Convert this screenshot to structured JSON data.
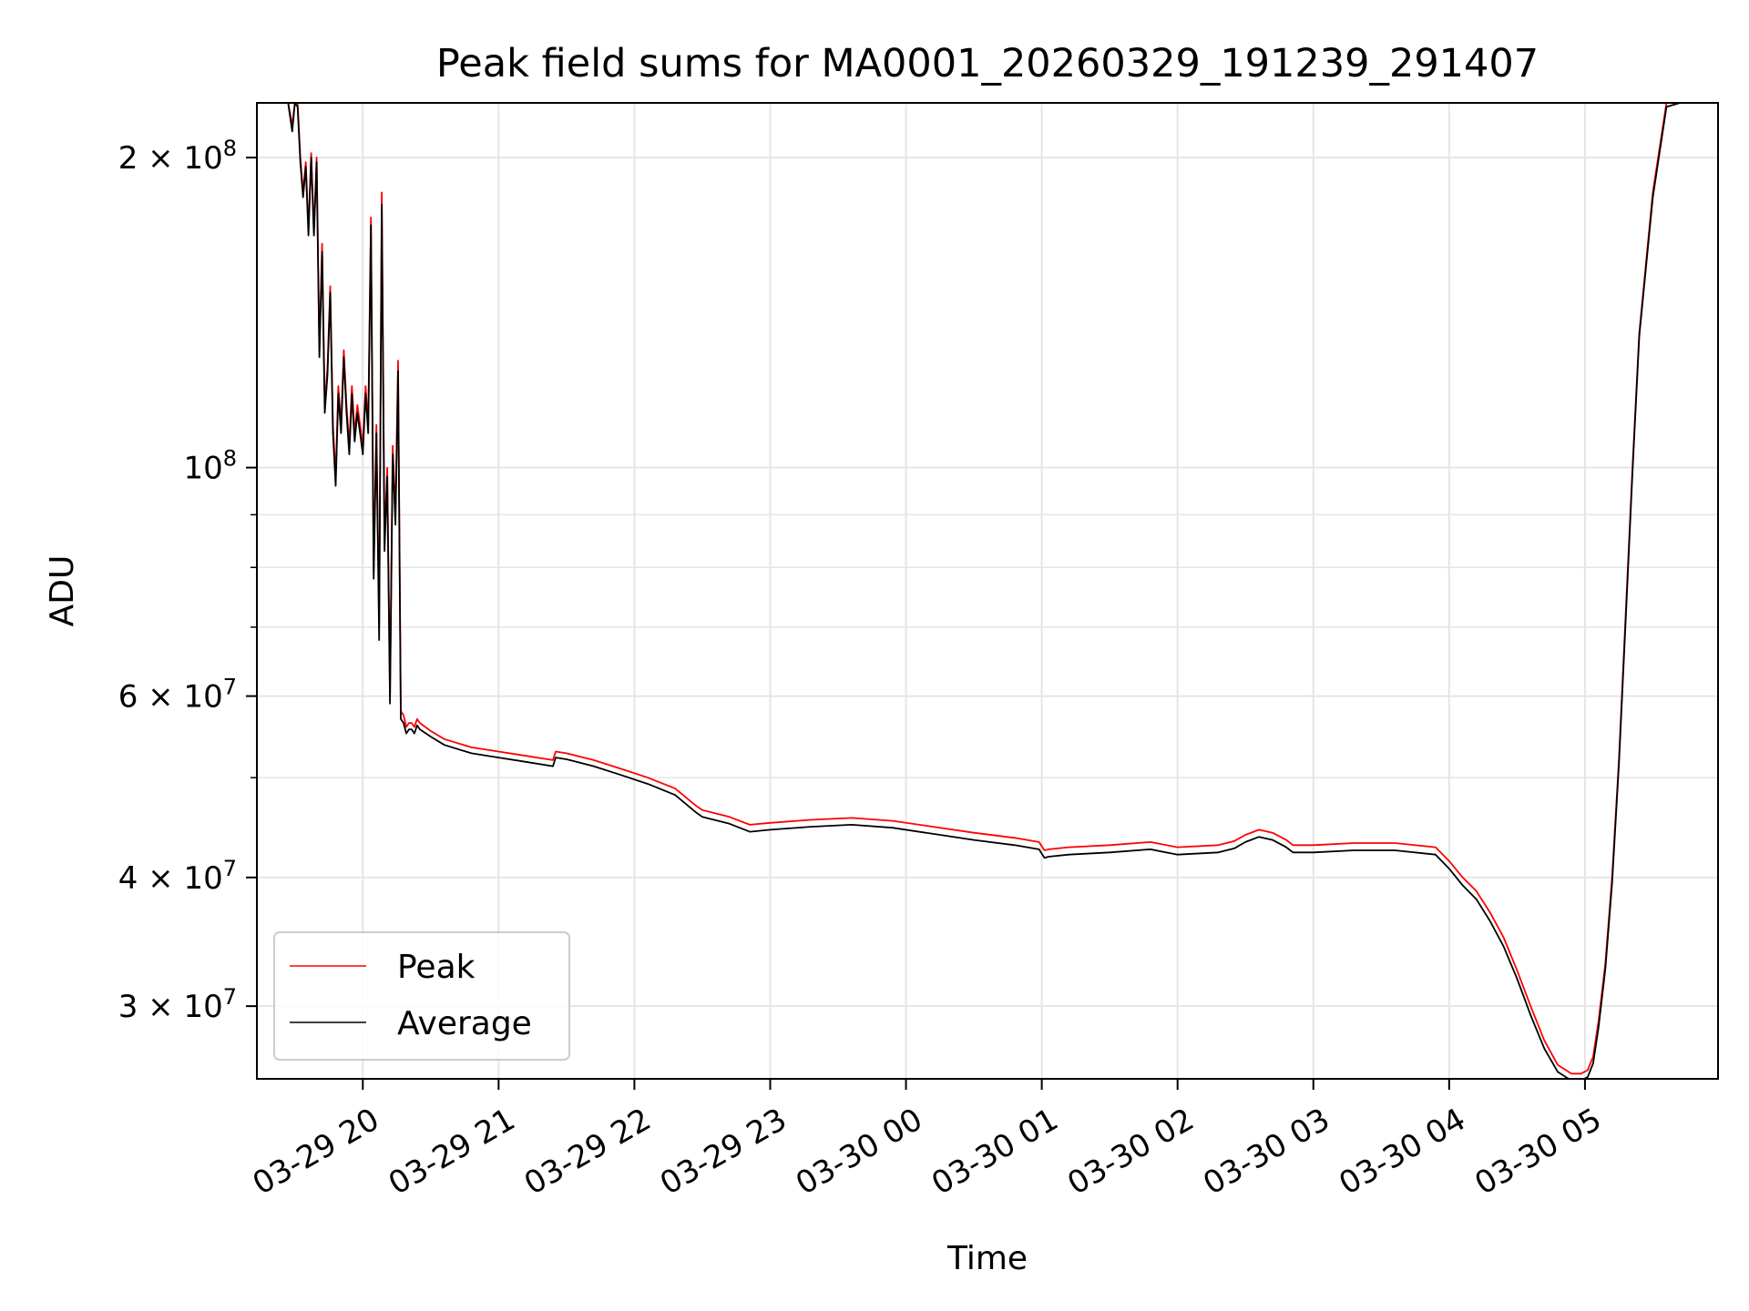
{
  "chart_data": {
    "type": "line",
    "title": "Peak field sums for MA0001_20260329_191239_291407",
    "xlabel": "Time",
    "ylabel": "ADU",
    "yscale": "log",
    "ylim": [
      25500000,
      226000000
    ],
    "xlim": [
      -0.78,
      9.98
    ],
    "x_unit": "hours since 03-29 20:00",
    "x_ticks": [
      {
        "value": 0,
        "label": "03-29 20"
      },
      {
        "value": 1,
        "label": "03-29 21"
      },
      {
        "value": 2,
        "label": "03-29 22"
      },
      {
        "value": 3,
        "label": "03-29 23"
      },
      {
        "value": 4,
        "label": "03-30 00"
      },
      {
        "value": 5,
        "label": "03-30 01"
      },
      {
        "value": 6,
        "label": "03-30 02"
      },
      {
        "value": 7,
        "label": "03-30 03"
      },
      {
        "value": 8,
        "label": "03-30 04"
      },
      {
        "value": 9,
        "label": "03-30 05"
      }
    ],
    "y_ticks": [
      {
        "value": 200000000,
        "mantissa": "2",
        "exp": "8"
      },
      {
        "value": 100000000,
        "mantissa": "",
        "exp": "8"
      },
      {
        "value": 60000000,
        "mantissa": "6",
        "exp": "7"
      },
      {
        "value": 40000000,
        "mantissa": "4",
        "exp": "7"
      },
      {
        "value": 30000000,
        "mantissa": "3",
        "exp": "7"
      }
    ],
    "y_minor_ticks": [
      90000000,
      80000000,
      70000000,
      50000000
    ],
    "grid": true,
    "legend_position": "lower-left",
    "series": [
      {
        "name": "Peak",
        "color": "#ff0000",
        "x": [
          -0.78,
          -0.55,
          -0.52,
          -0.5,
          -0.48,
          -0.46,
          -0.44,
          -0.42,
          -0.4,
          -0.38,
          -0.36,
          -0.34,
          -0.32,
          -0.3,
          -0.28,
          -0.26,
          -0.24,
          -0.22,
          -0.2,
          -0.18,
          -0.16,
          -0.14,
          -0.12,
          -0.1,
          -0.08,
          -0.06,
          -0.04,
          -0.02,
          0,
          0.02,
          0.04,
          0.06,
          0.08,
          0.1,
          0.12,
          0.14,
          0.16,
          0.18,
          0.2,
          0.22,
          0.24,
          0.26,
          0.28,
          0.3,
          0.32,
          0.34,
          0.36,
          0.38,
          0.4,
          0.42,
          0.5,
          0.6,
          0.8,
          1.0,
          1.2,
          1.4,
          1.42,
          1.5,
          1.7,
          1.9,
          2.1,
          2.3,
          2.45,
          2.5,
          2.7,
          2.85,
          3.0,
          3.3,
          3.6,
          3.9,
          4.2,
          4.5,
          4.8,
          4.98,
          5.02,
          5.05,
          5.2,
          5.5,
          5.8,
          6.0,
          6.3,
          6.42,
          6.5,
          6.6,
          6.7,
          6.8,
          6.85,
          7.0,
          7.3,
          7.6,
          7.9,
          8.0,
          8.1,
          8.2,
          8.3,
          8.4,
          8.5,
          8.6,
          8.7,
          8.8,
          8.9,
          8.97,
          9.02,
          9.06,
          9.1,
          9.15,
          9.2,
          9.25,
          9.3,
          9.35,
          9.4,
          9.5,
          9.6,
          9.7,
          9.75,
          9.8,
          9.98
        ],
        "y": [
          226000000,
          226000000,
          215000000,
          226000000,
          226000000,
          200000000,
          185000000,
          198000000,
          170000000,
          202000000,
          170000000,
          200000000,
          130000000,
          165000000,
          115000000,
          125000000,
          150000000,
          110000000,
          98000000,
          120000000,
          110000000,
          130000000,
          115000000,
          105000000,
          120000000,
          108000000,
          115000000,
          110000000,
          105000000,
          120000000,
          110000000,
          175000000,
          80000000,
          110000000,
          70000000,
          185000000,
          85000000,
          100000000,
          60000000,
          105000000,
          90000000,
          127000000,
          58000000,
          57500000,
          56000000,
          56500000,
          56500000,
          56000000,
          57000000,
          56500000,
          55500000,
          54500000,
          53500000,
          53000000,
          52500000,
          52000000,
          53000000,
          52800000,
          52000000,
          51000000,
          50000000,
          48800000,
          47000000,
          46500000,
          45800000,
          45000000,
          45200000,
          45500000,
          45700000,
          45400000,
          44800000,
          44200000,
          43700000,
          43300000,
          42500000,
          42600000,
          42800000,
          43000000,
          43300000,
          42800000,
          43000000,
          43400000,
          44000000,
          44500000,
          44200000,
          43500000,
          43000000,
          43000000,
          43200000,
          43200000,
          42800000,
          41500000,
          40000000,
          38800000,
          37000000,
          35000000,
          32500000,
          30000000,
          27800000,
          26300000,
          25800000,
          25800000,
          26000000,
          26800000,
          29000000,
          33000000,
          40000000,
          52000000,
          72000000,
          100000000,
          135000000,
          185000000,
          226000000,
          226000000,
          226000000,
          226000000,
          226000000
        ]
      },
      {
        "name": "Average",
        "color": "#000000",
        "x": [
          -0.78,
          -0.55,
          -0.52,
          -0.5,
          -0.48,
          -0.46,
          -0.44,
          -0.42,
          -0.4,
          -0.38,
          -0.36,
          -0.34,
          -0.32,
          -0.3,
          -0.28,
          -0.26,
          -0.24,
          -0.22,
          -0.2,
          -0.18,
          -0.16,
          -0.14,
          -0.12,
          -0.1,
          -0.08,
          -0.06,
          -0.04,
          -0.02,
          0,
          0.02,
          0.04,
          0.06,
          0.08,
          0.1,
          0.12,
          0.14,
          0.16,
          0.18,
          0.2,
          0.22,
          0.24,
          0.26,
          0.28,
          0.3,
          0.32,
          0.34,
          0.36,
          0.38,
          0.4,
          0.42,
          0.5,
          0.6,
          0.8,
          1.0,
          1.2,
          1.4,
          1.42,
          1.5,
          1.7,
          1.9,
          2.1,
          2.3,
          2.45,
          2.5,
          2.7,
          2.85,
          3.0,
          3.3,
          3.6,
          3.9,
          4.2,
          4.5,
          4.8,
          4.98,
          5.02,
          5.05,
          5.2,
          5.5,
          5.8,
          6.0,
          6.3,
          6.42,
          6.5,
          6.6,
          6.7,
          6.8,
          6.85,
          7.0,
          7.3,
          7.6,
          7.9,
          8.0,
          8.1,
          8.2,
          8.3,
          8.4,
          8.5,
          8.6,
          8.7,
          8.8,
          8.9,
          8.97,
          9.02,
          9.06,
          9.1,
          9.15,
          9.2,
          9.25,
          9.3,
          9.35,
          9.4,
          9.5,
          9.6,
          9.7,
          9.75,
          9.8,
          9.98
        ],
        "y": [
          226000000,
          226000000,
          212000000,
          226000000,
          224000000,
          198000000,
          183000000,
          196000000,
          168000000,
          200000000,
          168000000,
          198000000,
          128000000,
          162000000,
          113000000,
          123000000,
          148000000,
          108000000,
          96000000,
          118000000,
          108000000,
          128000000,
          113000000,
          103000000,
          118000000,
          106000000,
          113000000,
          108000000,
          103000000,
          118000000,
          108000000,
          172000000,
          78000000,
          108000000,
          68000000,
          180000000,
          83000000,
          98000000,
          59000000,
          103000000,
          88000000,
          124000000,
          57000000,
          56500000,
          55200000,
          55700000,
          55700000,
          55200000,
          56200000,
          55700000,
          54800000,
          53800000,
          52800000,
          52300000,
          51800000,
          51300000,
          52300000,
          52100000,
          51300000,
          50300000,
          49300000,
          48100000,
          46300000,
          45800000,
          45100000,
          44300000,
          44500000,
          44800000,
          45000000,
          44700000,
          44100000,
          43500000,
          43000000,
          42600000,
          41800000,
          41900000,
          42100000,
          42300000,
          42600000,
          42100000,
          42300000,
          42700000,
          43300000,
          43800000,
          43500000,
          42800000,
          42300000,
          42300000,
          42500000,
          42500000,
          42100000,
          40800000,
          39300000,
          38100000,
          36300000,
          34300000,
          31900000,
          29400000,
          27300000,
          25900000,
          25400000,
          25400000,
          25600000,
          26400000,
          28600000,
          32600000,
          39500000,
          51500000,
          71000000,
          99000000,
          134000000,
          183000000,
          224000000,
          226000000,
          226000000,
          226000000,
          226000000
        ]
      }
    ]
  }
}
